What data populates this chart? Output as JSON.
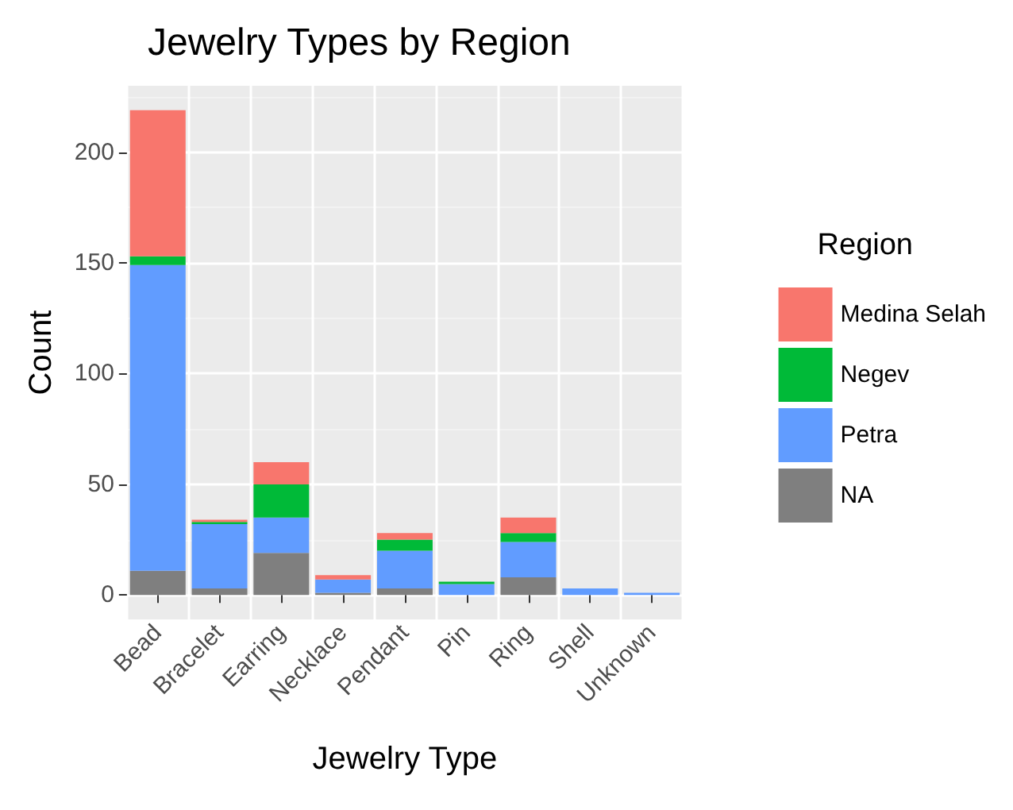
{
  "chart_data": {
    "type": "bar",
    "title": "Jewelry Types by Region",
    "xlabel": "Jewelry Type",
    "ylabel": "Count",
    "legend_title": "Region",
    "categories": [
      "Bead",
      "Bracelet",
      "Earring",
      "Necklace",
      "Pendant",
      "Pin",
      "Ring",
      "Shell",
      "Unknown"
    ],
    "stacked": true,
    "series": [
      {
        "name": "NA",
        "color": "#7f7f7f",
        "values": [
          11,
          3,
          19,
          1,
          3,
          0,
          8,
          0,
          0
        ]
      },
      {
        "name": "Petra",
        "color": "#619cff",
        "values": [
          138,
          29,
          16,
          6,
          17,
          5,
          16,
          3,
          1
        ]
      },
      {
        "name": "Negev",
        "color": "#00ba38",
        "values": [
          4,
          1,
          15,
          0,
          5,
          1,
          4,
          0,
          0
        ]
      },
      {
        "name": "Medina Selah",
        "color": "#f8766d",
        "values": [
          66,
          1,
          10,
          2,
          3,
          0,
          7,
          0,
          0
        ]
      }
    ],
    "ylim": [
      -11,
      230
    ],
    "yticks": [
      0,
      50,
      100,
      150,
      200
    ],
    "grid": true,
    "legend": "right"
  }
}
